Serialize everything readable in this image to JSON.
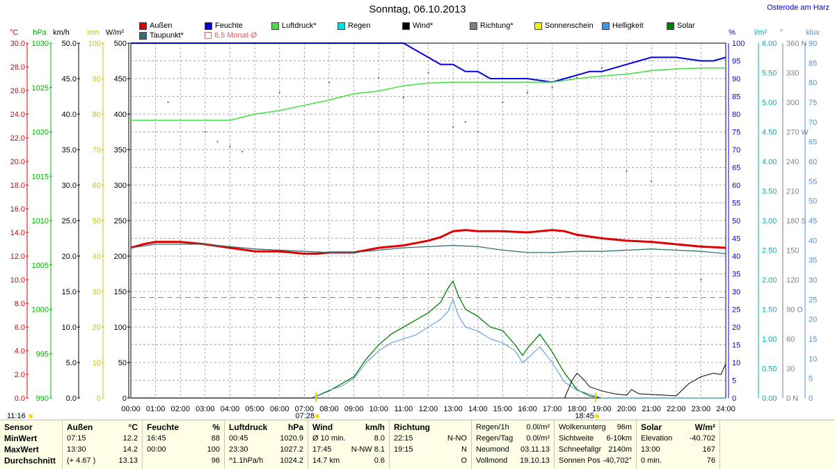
{
  "header": {
    "title": "Sonntag, 06.10.2013",
    "station": "Osterode am Harz"
  },
  "legend": [
    {
      "label": "Außen",
      "color": "#e00000"
    },
    {
      "label": "Feuchte",
      "color": "#0000e0"
    },
    {
      "label": "Luftdruck*",
      "color": "#40e040"
    },
    {
      "label": "Regen",
      "color": "#00e0e0"
    },
    {
      "label": "Wind*",
      "color": "#000000"
    },
    {
      "label": "Richtung*",
      "color": "#808080"
    },
    {
      "label": "Sonnenschein",
      "color": "#f0f000"
    },
    {
      "label": "Helligkeit",
      "color": "#4a90e2"
    },
    {
      "label": "Solar",
      "color": "#008000"
    },
    {
      "label": "Taupunkt*",
      "color": "#2f6f6f"
    },
    {
      "label": "8.5 Monat-Ø",
      "color": "#e06060"
    }
  ],
  "axes": {
    "left": [
      {
        "unit": "°C",
        "color": "#e00000",
        "ticks": [
          "30.0",
          "28.0",
          "26.0",
          "24.0",
          "22.0",
          "20.0",
          "18.0",
          "16.0",
          "14.0",
          "12.0",
          "10.0",
          "8.0",
          "6.0",
          "4.0",
          "2.0",
          "0.0"
        ]
      },
      {
        "unit": "hPa",
        "color": "#00b000",
        "ticks": [
          "1030",
          "1025",
          "1020",
          "1015",
          "1010",
          "1005",
          "1000",
          "995",
          "990"
        ]
      },
      {
        "unit": "km/h",
        "color": "#000000",
        "ticks": [
          "50.0",
          "45.0",
          "40.0",
          "35.0",
          "30.0",
          "25.0",
          "20.0",
          "15.0",
          "10.0",
          "5.0",
          "0.0"
        ]
      },
      {
        "unit": "min",
        "color": "#c8c800",
        "ticks": [
          "100",
          "90",
          "80",
          "70",
          "60",
          "50",
          "40",
          "30",
          "20",
          "10",
          "0"
        ]
      },
      {
        "unit": "W/m²",
        "color": "#000000",
        "ticks": [
          "500",
          "450",
          "400",
          "350",
          "300",
          "250",
          "200",
          "150",
          "100",
          "50",
          "0"
        ]
      }
    ],
    "right": [
      {
        "unit": "%",
        "color": "#0000e0",
        "ticks": [
          "100",
          "95",
          "90",
          "85",
          "80",
          "75",
          "70",
          "65",
          "60",
          "55",
          "50",
          "45",
          "40",
          "35",
          "30",
          "25",
          "20",
          "15",
          "10",
          "5",
          "0"
        ]
      },
      {
        "unit": "l/m²",
        "color": "#00b0b0",
        "ticks": [
          "6.00",
          "5.50",
          "5.00",
          "4.50",
          "4.00",
          "3.50",
          "3.00",
          "2.50",
          "2.00",
          "1.50",
          "1.00",
          "0.50",
          "0.00"
        ]
      },
      {
        "unit": "°",
        "color": "#808080",
        "ticks": [
          "360 N",
          "330",
          "300",
          "270 W",
          "240",
          "210",
          "180 S",
          "150",
          "120",
          "90 O",
          "60",
          "30",
          "0 N"
        ]
      },
      {
        "unit": "klux",
        "color": "#4a90e2",
        "ticks": [
          "90",
          "85",
          "80",
          "75",
          "70",
          "65",
          "60",
          "55",
          "50",
          "45",
          "40",
          "35",
          "30",
          "25",
          "20",
          "15",
          "10",
          "5",
          "0"
        ]
      }
    ],
    "x_ticks": [
      "00:00",
      "01:00",
      "02:00",
      "03:00",
      "04:00",
      "05:00",
      "06:00",
      "07:00",
      "08:00",
      "09:00",
      "10:00",
      "11:00",
      "12:00",
      "13:00",
      "14:00",
      "15:00",
      "16:00",
      "17:00",
      "18:00",
      "19:00",
      "20:00",
      "21:00",
      "22:00",
      "23:00",
      "24:00"
    ]
  },
  "markers": {
    "sunrise": "07:28",
    "sunset": "18:45",
    "day_length": "11:16"
  },
  "chart_data": {
    "type": "line",
    "x_unit": "hour",
    "xlim": [
      0,
      24
    ],
    "grid": true,
    "reference_line": {
      "name": "8.5 Monat-Ø",
      "axis": "°C",
      "value": 8.5
    },
    "series": [
      {
        "name": "Außen",
        "axis": "°C",
        "color": "#e00000",
        "x": [
          0,
          0.5,
          1,
          2,
          3,
          4,
          5,
          6,
          7,
          7.5,
          8,
          9,
          10,
          11,
          12,
          12.5,
          13,
          13.5,
          14,
          15,
          16,
          17,
          17.5,
          18,
          19,
          20,
          21,
          22,
          23,
          24
        ],
        "y": [
          12.7,
          13.0,
          13.2,
          13.2,
          13.0,
          12.7,
          12.4,
          12.4,
          12.2,
          12.2,
          12.3,
          12.3,
          12.7,
          12.9,
          13.3,
          13.6,
          14.1,
          14.2,
          14.1,
          14.1,
          14.0,
          14.2,
          14.1,
          13.8,
          13.5,
          13.3,
          13.2,
          13.0,
          12.8,
          12.7
        ]
      },
      {
        "name": "Taupunkt*",
        "axis": "°C",
        "color": "#2f6f6f",
        "x": [
          0,
          1,
          2,
          3,
          4,
          5,
          6,
          7,
          8,
          9,
          10,
          11,
          12,
          13,
          14,
          15,
          16,
          17,
          18,
          19,
          20,
          21,
          22,
          23,
          24
        ],
        "y": [
          12.7,
          13.0,
          13.0,
          13.0,
          12.8,
          12.6,
          12.5,
          12.4,
          12.3,
          12.3,
          12.5,
          12.7,
          12.8,
          12.9,
          12.8,
          12.5,
          12.3,
          12.3,
          12.4,
          12.4,
          12.5,
          12.6,
          12.5,
          12.4,
          12.2
        ]
      },
      {
        "name": "Feuchte",
        "axis": "%",
        "color": "#0000e0",
        "x": [
          0,
          11,
          11.5,
          12,
          12.5,
          13,
          13.5,
          14,
          14.5,
          15,
          16,
          17,
          17.5,
          18,
          18.5,
          19,
          19.5,
          20,
          20.5,
          21,
          22,
          23,
          23.5,
          24
        ],
        "y": [
          100,
          100,
          98,
          96,
          94,
          94,
          92,
          92,
          90,
          90,
          90,
          89,
          90,
          91,
          92,
          92,
          93,
          94,
          95,
          96,
          96,
          95,
          95,
          96
        ]
      },
      {
        "name": "Luftdruck*",
        "axis": "hPa",
        "color": "#40e040",
        "x": [
          0,
          4,
          5,
          6,
          7,
          8,
          9,
          10,
          11,
          12,
          13,
          14,
          15,
          16,
          17,
          18,
          19,
          20,
          21,
          22,
          23,
          24
        ],
        "y": [
          1021.3,
          1021.3,
          1022.0,
          1022.4,
          1023.0,
          1023.6,
          1024.3,
          1024.6,
          1025.2,
          1025.5,
          1025.6,
          1025.6,
          1025.6,
          1025.6,
          1025.6,
          1026.0,
          1026.3,
          1026.5,
          1026.9,
          1027.1,
          1027.2,
          1027.2
        ]
      },
      {
        "name": "Solar",
        "axis": "W/m²",
        "color": "#008000",
        "x": [
          0,
          7.3,
          8,
          8.5,
          9,
          9.5,
          10,
          10.5,
          11,
          11.5,
          12,
          12.5,
          12.8,
          13,
          13.2,
          13.5,
          14,
          14.5,
          15,
          15.5,
          15.8,
          16,
          16.5,
          17,
          17.5,
          18,
          18.5,
          19,
          24
        ],
        "y": [
          0,
          0,
          10,
          20,
          30,
          55,
          75,
          90,
          100,
          110,
          120,
          135,
          155,
          165,
          145,
          125,
          115,
          100,
          95,
          75,
          60,
          70,
          90,
          65,
          35,
          12,
          3,
          0,
          0
        ]
      },
      {
        "name": "Helligkeit",
        "axis": "klux",
        "color": "#4a90e2",
        "x": [
          0,
          7.3,
          8,
          8.5,
          9,
          9.5,
          10,
          10.5,
          11,
          11.5,
          12,
          12.5,
          12.8,
          13,
          13.2,
          13.5,
          14,
          14.5,
          15,
          15.5,
          15.8,
          16,
          16.5,
          17,
          17.5,
          18,
          18.5,
          19,
          24
        ],
        "y": [
          0,
          0,
          2,
          3,
          5,
          9,
          12,
          14,
          15,
          16,
          18,
          20,
          22,
          25,
          21,
          18,
          17,
          15,
          14,
          12,
          9,
          10,
          13,
          9,
          4,
          2,
          1,
          0,
          0
        ]
      },
      {
        "name": "Wind*",
        "axis": "km/h",
        "color": "#000000",
        "x": [
          0,
          17.5,
          17.8,
          18,
          18.3,
          18.5,
          19,
          19.5,
          20,
          20.2,
          20.5,
          21,
          22,
          22.5,
          23,
          23.5,
          23.8,
          24
        ],
        "y": [
          0,
          0,
          2.5,
          3.5,
          2.5,
          1.6,
          1.0,
          0.6,
          0.4,
          1.2,
          0.6,
          0.5,
          0.3,
          2.0,
          3.0,
          3.5,
          3.3,
          4.8
        ]
      }
    ],
    "scatter": {
      "name": "Richtung*",
      "axis": "°",
      "color": "#606060",
      "x": [
        1.5,
        3,
        3.5,
        4,
        4.5,
        6,
        8,
        10,
        11,
        12,
        13,
        13.5,
        14,
        15,
        16,
        17,
        18,
        19,
        20,
        21,
        23
      ],
      "y": [
        300,
        270,
        260,
        255,
        250,
        310,
        320,
        325,
        305,
        330,
        275,
        280,
        270,
        300,
        310,
        315,
        325,
        335,
        230,
        220,
        120
      ]
    }
  },
  "footer": {
    "columns": [
      {
        "title": "Sensor",
        "rows": [
          "MinWert",
          "MaxWert",
          "Durchschnitt"
        ]
      },
      {
        "title": "Außen",
        "unit": "°C",
        "rows": [
          [
            "07:15",
            "12.2"
          ],
          [
            "13:30",
            "14.2"
          ],
          [
            "(+ 4.67 )",
            "13.13"
          ]
        ]
      },
      {
        "title": "Feuchte",
        "unit": "%",
        "rows": [
          [
            "16:45",
            "88"
          ],
          [
            "00:00",
            "100"
          ],
          [
            "",
            "96"
          ]
        ]
      },
      {
        "title": "Luftdruck",
        "unit": "hPa",
        "rows": [
          [
            "00:45",
            "1020.9"
          ],
          [
            "23:30",
            "1027.2"
          ],
          [
            "^1.1hPa/h",
            "1024.2"
          ]
        ]
      },
      {
        "title": "Wind",
        "unit": "km/h",
        "rows": [
          [
            "Ø 10 min.",
            "8.0"
          ],
          [
            "17:45",
            "N-NW 8.1"
          ],
          [
            "14.7 km",
            "0.6"
          ]
        ]
      },
      {
        "title": "Richtung",
        "unit": "",
        "rows": [
          [
            "22:15",
            "N-NO"
          ],
          [
            "19:15",
            "N"
          ],
          [
            "",
            "O"
          ]
        ]
      },
      {
        "title": "",
        "unit": "",
        "rows": [
          [
            "Regen/1h",
            "0.0l/m²"
          ],
          [
            "Regen/Tag",
            "0.0l/m²"
          ],
          [
            "Neumond",
            "03.11.13"
          ],
          [
            "Vollmond",
            "19.10.13"
          ]
        ]
      },
      {
        "title": "",
        "unit": "",
        "rows": [
          [
            "Wolkenunterg",
            "96m"
          ],
          [
            "Sichtweite",
            "6-10km"
          ],
          [
            "Schneefallgr",
            "2140m"
          ],
          [
            "Sonnen Pos",
            "-40,702°"
          ]
        ]
      },
      {
        "title": "Solar",
        "unit": "W/m²",
        "rows": [
          [
            "Elevation",
            "-40.702"
          ],
          [
            "13:00",
            "167"
          ],
          [
            "0 min.",
            "76"
          ]
        ]
      }
    ]
  }
}
